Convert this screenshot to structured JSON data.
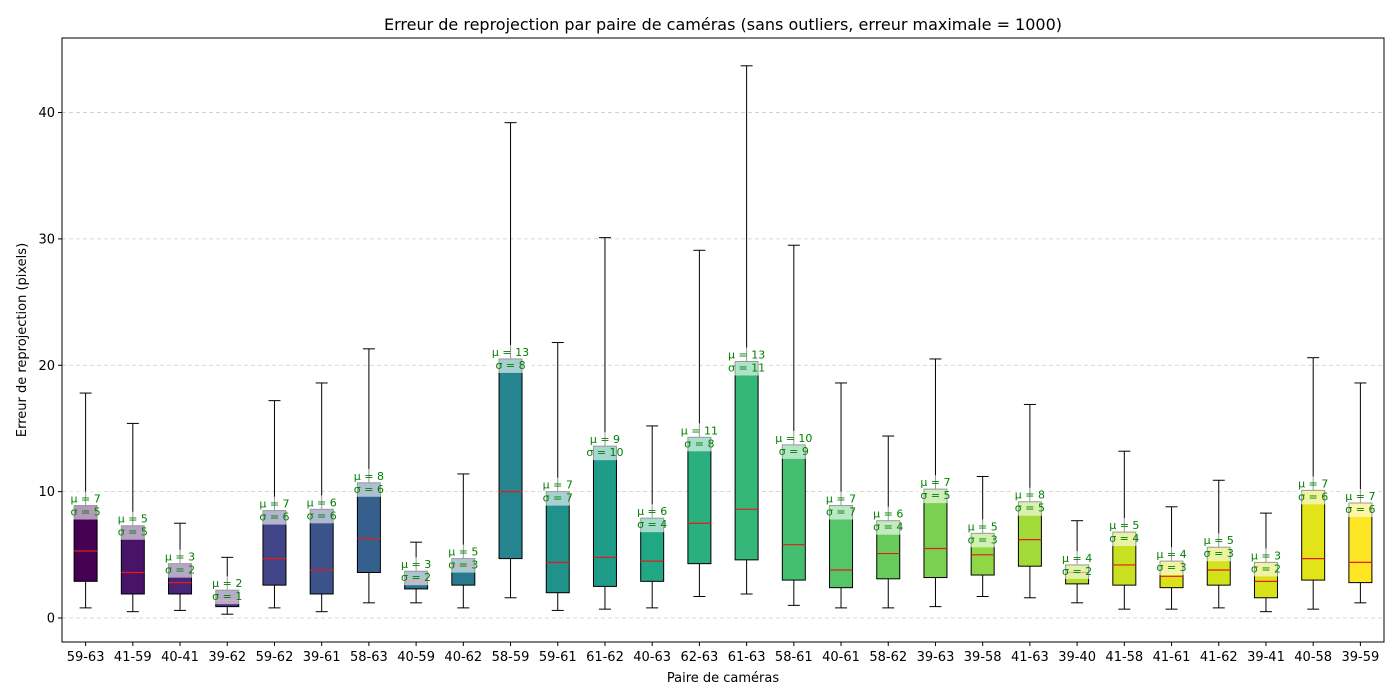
{
  "chart_data": {
    "type": "box",
    "title": "Erreur de reprojection par paire de caméras (sans outliers, erreur maximale = 1000)",
    "xlabel": "Paire de caméras",
    "ylabel": "Erreur de reprojection (pixels)",
    "ylim": [
      -1.9,
      45.9
    ],
    "yticks": [
      0,
      10,
      20,
      30,
      40
    ],
    "grid": "horizontal-dashed",
    "median_color": "#e41a1c",
    "annotation_color": "#008000",
    "categories": [
      "59-63",
      "41-59",
      "40-41",
      "39-62",
      "59-62",
      "39-61",
      "58-63",
      "40-59",
      "40-62",
      "58-59",
      "59-61",
      "61-62",
      "40-63",
      "62-63",
      "61-63",
      "58-61",
      "40-61",
      "58-62",
      "39-63",
      "39-58",
      "41-63",
      "39-40",
      "41-58",
      "41-61",
      "41-62",
      "39-41",
      "40-58",
      "39-59"
    ],
    "boxes": [
      {
        "min": 0.8,
        "q1": 2.9,
        "median": 5.3,
        "q3": 8.9,
        "max": 17.8,
        "mu_label": "μ = 7",
        "sigma_label": "σ = 5",
        "color": "#440154"
      },
      {
        "min": 0.5,
        "q1": 1.9,
        "median": 3.6,
        "q3": 7.3,
        "max": 15.4,
        "mu_label": "μ = 5",
        "sigma_label": "σ = 5",
        "color": "#481467"
      },
      {
        "min": 0.6,
        "q1": 1.9,
        "median": 2.8,
        "q3": 4.3,
        "max": 7.5,
        "mu_label": "μ = 3",
        "sigma_label": "σ = 2",
        "color": "#482576"
      },
      {
        "min": 0.3,
        "q1": 0.9,
        "median": 1.4,
        "q3": 2.2,
        "max": 4.8,
        "mu_label": "μ = 2",
        "sigma_label": "σ = 1",
        "color": "#463480"
      },
      {
        "min": 0.8,
        "q1": 2.6,
        "median": 4.7,
        "q3": 8.5,
        "max": 17.2,
        "mu_label": "μ = 7",
        "sigma_label": "σ = 6",
        "color": "#414487"
      },
      {
        "min": 0.5,
        "q1": 1.9,
        "median": 3.8,
        "q3": 8.6,
        "max": 18.6,
        "mu_label": "μ = 6",
        "sigma_label": "σ = 6",
        "color": "#3b528b"
      },
      {
        "min": 1.2,
        "q1": 3.6,
        "median": 6.3,
        "q3": 10.7,
        "max": 21.3,
        "mu_label": "μ = 8",
        "sigma_label": "σ = 6",
        "color": "#355f8d"
      },
      {
        "min": 1.2,
        "q1": 2.3,
        "median": 2.9,
        "q3": 3.7,
        "max": 6.0,
        "mu_label": "μ = 3",
        "sigma_label": "σ = 2",
        "color": "#2f6c8e"
      },
      {
        "min": 0.8,
        "q1": 2.6,
        "median": 4.2,
        "q3": 4.7,
        "max": 11.4,
        "mu_label": "μ = 5",
        "sigma_label": "σ = 3",
        "color": "#2a788e"
      },
      {
        "min": 1.6,
        "q1": 4.7,
        "median": 10.0,
        "q3": 20.5,
        "max": 39.2,
        "mu_label": "μ = 13",
        "sigma_label": "σ = 8",
        "color": "#25848e"
      },
      {
        "min": 0.6,
        "q1": 2.0,
        "median": 4.4,
        "q3": 10.0,
        "max": 21.8,
        "mu_label": "μ = 7",
        "sigma_label": "σ = 7",
        "color": "#21918c"
      },
      {
        "min": 0.7,
        "q1": 2.5,
        "median": 4.8,
        "q3": 13.6,
        "max": 30.1,
        "mu_label": "μ = 9",
        "sigma_label": "σ = 10",
        "color": "#1e9c89"
      },
      {
        "min": 0.8,
        "q1": 2.9,
        "median": 4.5,
        "q3": 7.9,
        "max": 15.2,
        "mu_label": "μ = 6",
        "sigma_label": "σ = 4",
        "color": "#20a884"
      },
      {
        "min": 1.7,
        "q1": 4.3,
        "median": 7.5,
        "q3": 14.3,
        "max": 29.1,
        "mu_label": "μ = 11",
        "sigma_label": "σ = 8",
        "color": "#2ab07f"
      },
      {
        "min": 1.9,
        "q1": 4.6,
        "median": 8.6,
        "q3": 20.3,
        "max": 43.7,
        "mu_label": "μ = 13",
        "sigma_label": "σ = 11",
        "color": "#35b779"
      },
      {
        "min": 1.0,
        "q1": 3.0,
        "median": 5.8,
        "q3": 13.7,
        "max": 29.5,
        "mu_label": "μ = 10",
        "sigma_label": "σ = 9",
        "color": "#44bf70"
      },
      {
        "min": 0.8,
        "q1": 2.4,
        "median": 3.8,
        "q3": 8.9,
        "max": 18.6,
        "mu_label": "μ = 7",
        "sigma_label": "σ = 7",
        "color": "#54c568"
      },
      {
        "min": 0.8,
        "q1": 3.1,
        "median": 5.1,
        "q3": 7.7,
        "max": 14.4,
        "mu_label": "μ = 6",
        "sigma_label": "σ = 4",
        "color": "#67cc5c"
      },
      {
        "min": 0.9,
        "q1": 3.2,
        "median": 5.5,
        "q3": 10.2,
        "max": 20.5,
        "mu_label": "μ = 7",
        "sigma_label": "σ = 5",
        "color": "#7ad151"
      },
      {
        "min": 1.7,
        "q1": 3.4,
        "median": 5.0,
        "q3": 6.7,
        "max": 11.2,
        "mu_label": "μ = 5",
        "sigma_label": "σ = 3",
        "color": "#8fd744"
      },
      {
        "min": 1.6,
        "q1": 4.1,
        "median": 6.2,
        "q3": 9.2,
        "max": 16.9,
        "mu_label": "μ = 8",
        "sigma_label": "σ = 5",
        "color": "#a2da37"
      },
      {
        "min": 1.2,
        "q1": 2.7,
        "median": 3.6,
        "q3": 4.2,
        "max": 7.7,
        "mu_label": "μ = 4",
        "sigma_label": "σ = 2",
        "color": "#b5de2b"
      },
      {
        "min": 0.7,
        "q1": 2.6,
        "median": 4.2,
        "q3": 6.8,
        "max": 13.2,
        "mu_label": "μ = 5",
        "sigma_label": "σ = 4",
        "color": "#c8e020"
      },
      {
        "min": 0.7,
        "q1": 2.4,
        "median": 3.3,
        "q3": 4.5,
        "max": 8.8,
        "mu_label": "μ = 4",
        "sigma_label": "σ = 3",
        "color": "#dae319"
      },
      {
        "min": 0.8,
        "q1": 2.6,
        "median": 3.8,
        "q3": 5.6,
        "max": 10.9,
        "mu_label": "μ = 5",
        "sigma_label": "σ = 3",
        "color": "#d2e21b"
      },
      {
        "min": 0.5,
        "q1": 1.6,
        "median": 2.9,
        "q3": 4.4,
        "max": 8.3,
        "mu_label": "μ = 3",
        "sigma_label": "σ = 2",
        "color": "#d8e219"
      },
      {
        "min": 0.7,
        "q1": 3.0,
        "median": 4.7,
        "q3": 10.1,
        "max": 20.6,
        "mu_label": "μ = 7",
        "sigma_label": "σ = 6",
        "color": "#e2e418"
      },
      {
        "min": 1.2,
        "q1": 2.8,
        "median": 4.4,
        "q3": 9.1,
        "max": 18.6,
        "mu_label": "μ = 7",
        "sigma_label": "σ = 6",
        "color": "#fde725"
      }
    ]
  }
}
